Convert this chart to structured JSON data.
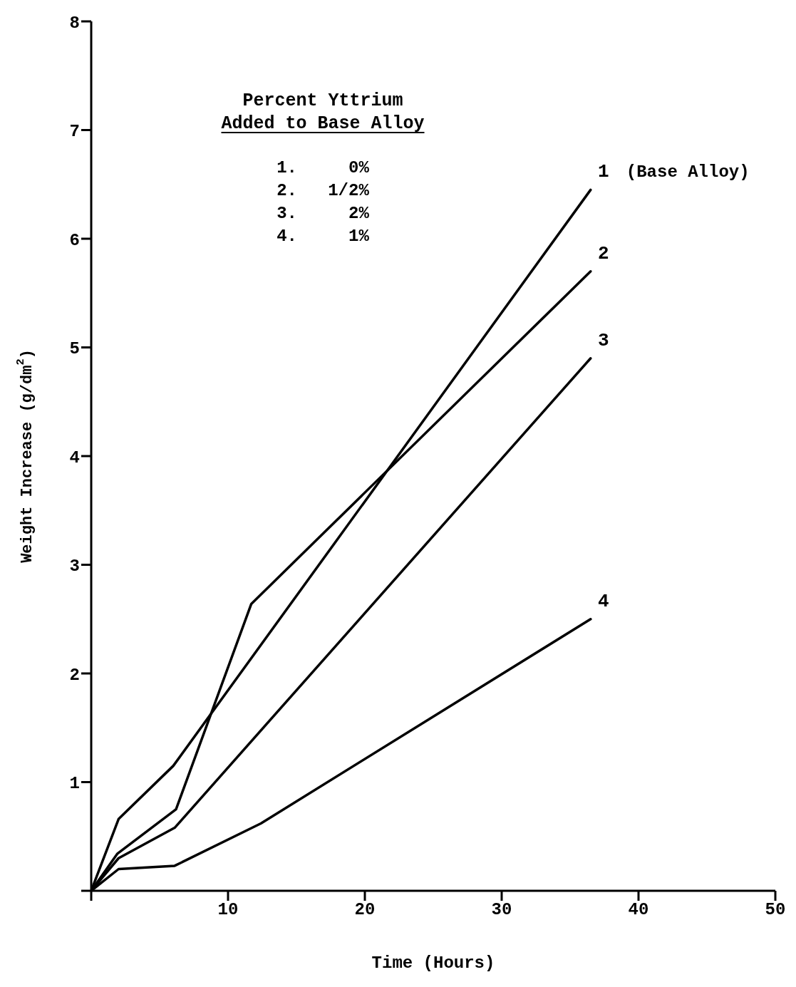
{
  "chart_data": {
    "type": "line",
    "xlabel": "Time (Hours)",
    "ylabel": "Weight Increase (g/dm$^{2}$)",
    "xlim": [
      0,
      50
    ],
    "xticks": [
      {
        "value": 0,
        "label": null
      },
      10,
      20,
      30,
      40,
      50
    ],
    "ylim": [
      0,
      8
    ],
    "yticks": [
      {
        "value": 0,
        "label": null
      },
      1,
      2,
      3,
      4,
      5,
      6,
      7,
      8
    ],
    "grid": false,
    "marker": "none",
    "line_style": "solid",
    "series": [
      {
        "name": "1",
        "color": "#000000",
        "x": [
          0,
          2,
          6,
          36.5
        ],
        "values": [
          0,
          0.66,
          1.15,
          6.45
        ]
      },
      {
        "name": "2",
        "color": "#000000",
        "x": [
          0,
          1.9,
          6.2,
          11.7,
          36.5
        ],
        "values": [
          0,
          0.34,
          0.75,
          2.64,
          5.7
        ]
      },
      {
        "name": "3",
        "color": "#000000",
        "x": [
          0,
          2,
          6.1,
          36.5
        ],
        "values": [
          0,
          0.3,
          0.58,
          4.9
        ]
      },
      {
        "name": "4",
        "color": "#000000",
        "x": [
          0,
          2,
          6.1,
          12.4,
          36.5
        ],
        "values": [
          0,
          0.2,
          0.23,
          0.62,
          2.5
        ]
      }
    ],
    "annotations": [
      {
        "text": "(Base Alloy)",
        "x": 36.5,
        "y": 6.45
      },
      "Percent Yttrium",
      "Added to Base Alloy",
      "1.     0%",
      "2.   1/2%",
      "3.     2%",
      "4.     1%"
    ]
  }
}
